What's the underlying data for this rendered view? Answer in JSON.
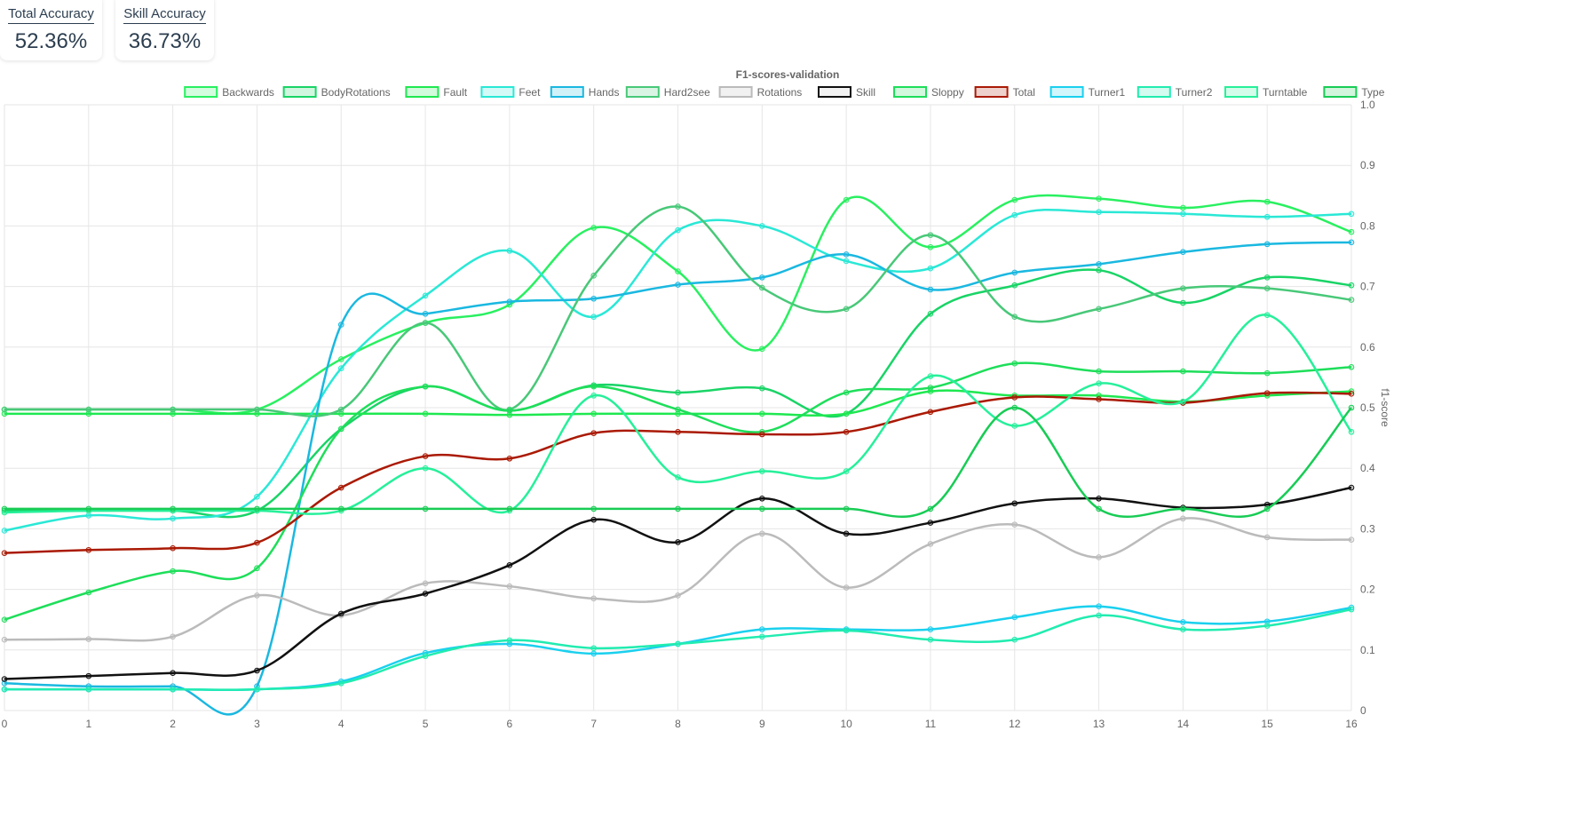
{
  "cards": [
    {
      "title": "Total Accuracy",
      "value": "52.36%"
    },
    {
      "title": "Skill Accuracy",
      "value": "36.73%"
    }
  ],
  "chart_data": {
    "type": "line",
    "title": "F1-scores-validation",
    "xlabel": "",
    "ylabel": "f1-score",
    "x": [
      0,
      1,
      2,
      3,
      4,
      5,
      6,
      7,
      8,
      9,
      10,
      11,
      12,
      13,
      14,
      15,
      16
    ],
    "ylim": [
      0,
      1
    ],
    "yticks": [
      0,
      0.1,
      0.2,
      0.3,
      0.4,
      0.5,
      0.6,
      0.7,
      0.8,
      0.9,
      1.0
    ],
    "ytick_labels": [
      "0",
      "0.1",
      "0.2",
      "0.3",
      "0.4",
      "0.5",
      "0.6",
      "0.7",
      "0.8",
      "0.9",
      "1.0"
    ],
    "y_axis_position": "right",
    "grid": true,
    "legend_position": "top",
    "series": [
      {
        "name": "Backwards",
        "color": "#29f060",
        "values": [
          0.497,
          0.497,
          0.497,
          0.497,
          0.58,
          0.64,
          0.67,
          0.797,
          0.725,
          0.597,
          0.843,
          0.765,
          0.843,
          0.845,
          0.83,
          0.84,
          0.79
        ]
      },
      {
        "name": "BodyRotations",
        "color": "#19d466",
        "values": [
          0.33,
          0.33,
          0.33,
          0.33,
          0.465,
          0.535,
          0.495,
          0.537,
          0.525,
          0.532,
          0.49,
          0.655,
          0.702,
          0.727,
          0.673,
          0.715,
          0.702
        ]
      },
      {
        "name": "Fault",
        "color": "#1ee850",
        "values": [
          0.49,
          0.49,
          0.49,
          0.49,
          0.49,
          0.49,
          0.488,
          0.49,
          0.49,
          0.49,
          0.49,
          0.527,
          0.52,
          0.52,
          0.51,
          0.52,
          0.527
        ]
      },
      {
        "name": "Feet",
        "color": "#2ae8d6",
        "values": [
          0.297,
          0.322,
          0.317,
          0.353,
          0.565,
          0.685,
          0.759,
          0.65,
          0.793,
          0.8,
          0.742,
          0.73,
          0.818,
          0.823,
          0.82,
          0.815,
          0.82
        ]
      },
      {
        "name": "Hands",
        "color": "#1ab8e0",
        "values": [
          0.045,
          0.04,
          0.04,
          0.04,
          0.637,
          0.655,
          0.675,
          0.68,
          0.703,
          0.715,
          0.753,
          0.695,
          0.723,
          0.737,
          0.757,
          0.77,
          0.773
        ]
      },
      {
        "name": "Hard2see",
        "color": "#48c878",
        "values": [
          0.497,
          0.497,
          0.497,
          0.497,
          0.497,
          0.64,
          0.497,
          0.718,
          0.832,
          0.698,
          0.663,
          0.785,
          0.65,
          0.663,
          0.697,
          0.697,
          0.678
        ]
      },
      {
        "name": "Rotations",
        "color": "#bbbbbb",
        "values": [
          0.117,
          0.118,
          0.122,
          0.19,
          0.157,
          0.21,
          0.205,
          0.185,
          0.19,
          0.292,
          0.203,
          0.275,
          0.307,
          0.253,
          0.317,
          0.286,
          0.282
        ]
      },
      {
        "name": "Skill",
        "color": "#111111",
        "values": [
          0.052,
          0.057,
          0.062,
          0.066,
          0.16,
          0.193,
          0.24,
          0.315,
          0.278,
          0.35,
          0.292,
          0.31,
          0.342,
          0.35,
          0.335,
          0.34,
          0.368
        ]
      },
      {
        "name": "Sloppy",
        "color": "#1ede5a",
        "values": [
          0.15,
          0.195,
          0.23,
          0.235,
          0.465,
          0.535,
          0.495,
          0.535,
          0.497,
          0.46,
          0.525,
          0.533,
          0.573,
          0.56,
          0.56,
          0.557,
          0.567
        ]
      },
      {
        "name": "Total",
        "color": "#aa1a05",
        "values": [
          0.26,
          0.265,
          0.268,
          0.277,
          0.368,
          0.42,
          0.416,
          0.458,
          0.46,
          0.456,
          0.46,
          0.493,
          0.517,
          0.514,
          0.508,
          0.524,
          0.523
        ]
      },
      {
        "name": "Turner1",
        "color": "#1ad0ee",
        "values": [
          0.035,
          0.035,
          0.035,
          0.035,
          0.048,
          0.095,
          0.11,
          0.094,
          0.11,
          0.134,
          0.134,
          0.134,
          0.154,
          0.172,
          0.146,
          0.147,
          0.17
        ]
      },
      {
        "name": "Turner2",
        "color": "#21ecb0",
        "values": [
          0.035,
          0.035,
          0.035,
          0.035,
          0.045,
          0.09,
          0.116,
          0.103,
          0.11,
          0.122,
          0.132,
          0.117,
          0.117,
          0.157,
          0.134,
          0.14,
          0.167
        ]
      },
      {
        "name": "Turntable",
        "color": "#26f09a",
        "values": [
          0.327,
          0.33,
          0.33,
          0.33,
          0.33,
          0.4,
          0.33,
          0.52,
          0.385,
          0.395,
          0.395,
          0.552,
          0.47,
          0.54,
          0.51,
          0.653,
          0.46
        ]
      },
      {
        "name": "Type",
        "color": "#18cc55",
        "values": [
          0.333,
          0.333,
          0.333,
          0.333,
          0.333,
          0.333,
          0.333,
          0.333,
          0.333,
          0.333,
          0.333,
          0.333,
          0.5,
          0.333,
          0.333,
          0.333,
          0.5
        ]
      }
    ]
  }
}
